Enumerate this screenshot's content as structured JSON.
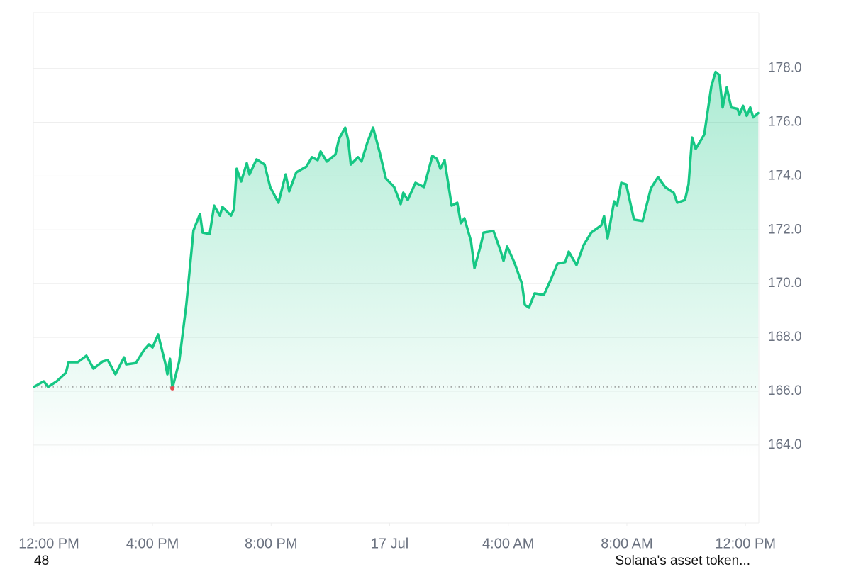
{
  "chart_data": {
    "type": "line",
    "color": "#16c784",
    "low_marker_color": "#e5484d",
    "grid": true,
    "baseline": 166.16,
    "x": [
      0,
      0.33,
      0.48,
      0.77,
      1.08,
      1.17,
      1.48,
      1.77,
      2.01,
      2.32,
      2.49,
      2.75,
      3.04,
      3.11,
      3.44,
      3.71,
      3.88,
      4.0,
      4.19,
      4.43,
      4.5,
      4.59,
      4.67,
      4.9,
      5.14,
      5.38,
      5.6,
      5.69,
      5.93,
      6.08,
      6.27,
      6.36,
      6.65,
      6.75,
      6.84,
      6.99,
      7.18,
      7.27,
      7.51,
      7.78,
      7.97,
      8.25,
      8.49,
      8.61,
      8.85,
      9.19,
      9.38,
      9.57,
      9.67,
      9.88,
      10.17,
      10.29,
      10.5,
      10.6,
      10.69,
      10.93,
      11.05,
      11.24,
      11.44,
      11.67,
      11.87,
      12.15,
      12.37,
      12.46,
      12.61,
      12.87,
      13.16,
      13.44,
      13.59,
      13.71,
      13.85,
      14.09,
      14.28,
      14.4,
      14.52,
      14.74,
      14.86,
      15.07,
      15.17,
      15.5,
      15.74,
      15.84,
      15.96,
      16.2,
      16.46,
      16.56,
      16.7,
      16.89,
      17.2,
      17.42,
      17.66,
      17.92,
      18.04,
      18.3,
      18.54,
      18.8,
      19.14,
      19.23,
      19.35,
      19.57,
      19.67,
      19.81,
      19.98,
      20.24,
      20.53,
      20.81,
      21.05,
      21.29,
      21.58,
      21.7,
      21.96,
      22.08,
      22.2,
      22.32,
      22.61,
      22.85,
      22.99,
      23.11,
      23.23,
      23.37,
      23.52,
      23.73,
      23.8,
      23.92,
      24.04,
      24.16,
      24.26,
      24.43
    ],
    "values": [
      166.16,
      166.37,
      166.16,
      166.37,
      166.69,
      167.08,
      167.08,
      167.32,
      166.84,
      167.11,
      167.16,
      166.63,
      167.26,
      167.0,
      167.05,
      167.53,
      167.74,
      167.63,
      168.11,
      167.05,
      166.63,
      167.21,
      166.11,
      167.11,
      169.21,
      171.98,
      172.59,
      171.9,
      171.85,
      172.9,
      172.53,
      172.85,
      172.53,
      172.77,
      174.27,
      173.8,
      174.48,
      174.06,
      174.62,
      174.43,
      173.59,
      173.01,
      174.06,
      173.43,
      174.14,
      174.35,
      174.7,
      174.59,
      174.91,
      174.54,
      174.8,
      175.38,
      175.8,
      175.33,
      174.43,
      174.7,
      174.54,
      175.22,
      175.8,
      174.85,
      173.91,
      173.59,
      172.96,
      173.38,
      173.11,
      173.75,
      173.59,
      174.75,
      174.64,
      174.27,
      174.59,
      172.9,
      173.01,
      172.25,
      172.43,
      171.59,
      170.58,
      171.43,
      171.9,
      171.96,
      171.22,
      170.85,
      171.38,
      170.8,
      170.0,
      169.21,
      169.11,
      169.64,
      169.58,
      170.11,
      170.74,
      170.8,
      171.19,
      170.69,
      171.43,
      171.9,
      172.17,
      172.51,
      171.69,
      173.06,
      172.9,
      173.75,
      173.69,
      172.38,
      172.33,
      173.54,
      173.96,
      173.59,
      173.38,
      173.01,
      173.11,
      173.69,
      175.43,
      175.01,
      175.54,
      177.34,
      177.87,
      177.76,
      176.55,
      177.29,
      176.55,
      176.5,
      176.29,
      176.61,
      176.24,
      176.55,
      176.18,
      176.34
    ],
    "low_index": 22,
    "xlim": [
      -0.02,
      24.45
    ],
    "ylim": [
      161.1,
      180.07
    ],
    "xticks": [
      {
        "value": 0,
        "label": "12:00 PM"
      },
      {
        "value": 4,
        "label": "4:00 PM"
      },
      {
        "value": 8,
        "label": "8:00 PM"
      },
      {
        "value": 12,
        "label": "17 Jul"
      },
      {
        "value": 16,
        "label": "4:00 AM"
      },
      {
        "value": 20,
        "label": "8:00 AM"
      },
      {
        "value": 24,
        "label": "12:00 PM"
      }
    ],
    "yticks": [
      {
        "value": 164,
        "label": "164.0"
      },
      {
        "value": 166,
        "label": "166.0"
      },
      {
        "value": 168,
        "label": "168.0"
      },
      {
        "value": 170,
        "label": "170.0"
      },
      {
        "value": 172,
        "label": "172.0"
      },
      {
        "value": 174,
        "label": "174.0"
      },
      {
        "value": 176,
        "label": "176.0"
      },
      {
        "value": 178,
        "label": "178.0"
      }
    ],
    "annotations": [
      "48",
      "Solana's asset token..."
    ]
  }
}
